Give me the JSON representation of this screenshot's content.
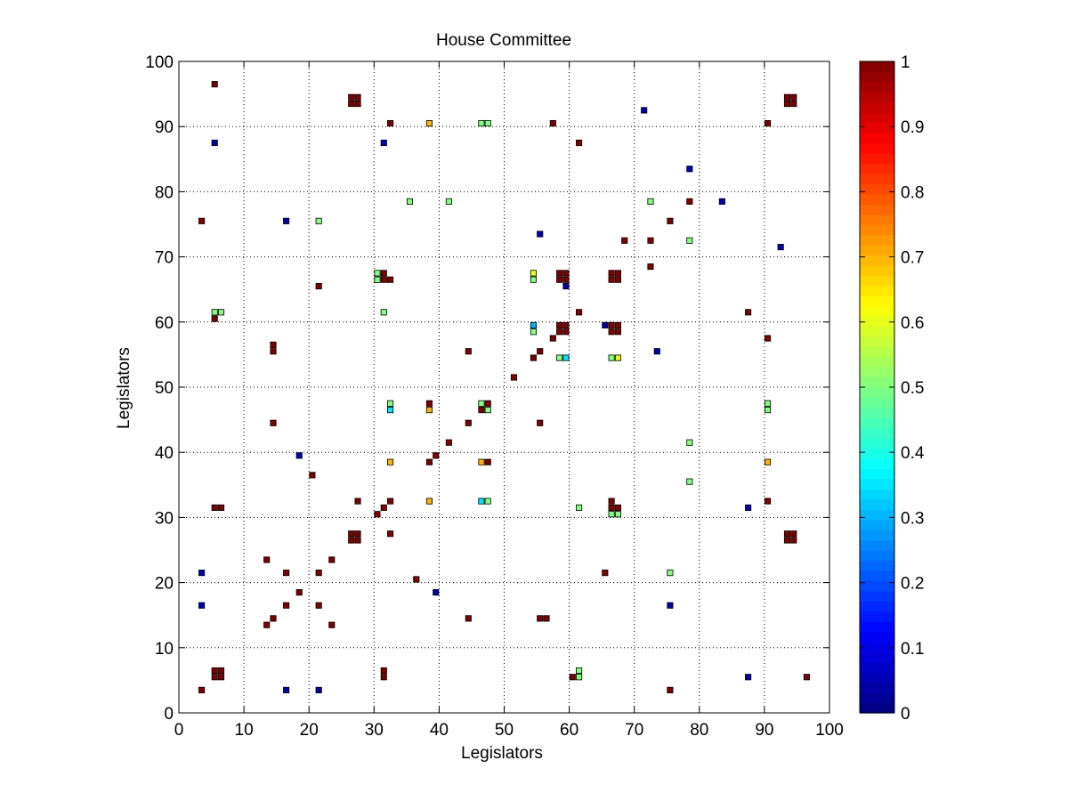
{
  "chart_data": {
    "type": "heatmap",
    "title": "House Committee",
    "xlabel": "Legislators",
    "ylabel": "Legislators",
    "xlim": [
      0,
      100
    ],
    "ylim": [
      0,
      100
    ],
    "grid": true,
    "xticks": [
      0,
      10,
      20,
      30,
      40,
      50,
      60,
      70,
      80,
      90,
      100
    ],
    "yticks": [
      0,
      10,
      20,
      30,
      40,
      50,
      60,
      70,
      80,
      90,
      100
    ],
    "colorbar": {
      "colormap": "jet",
      "range": [
        0,
        1
      ],
      "ticks": [
        0,
        0.1,
        0.2,
        0.3,
        0.4,
        0.5,
        0.6,
        0.7,
        0.8,
        0.9,
        1
      ],
      "tick_labels": [
        "0",
        "0.1",
        "0.2",
        "0.3",
        "0.4",
        "0.5",
        "0.6",
        "0.7",
        "0.8",
        "0.9",
        "1"
      ]
    },
    "cells": [
      [
        6,
        97,
        1
      ],
      [
        27,
        94,
        1
      ],
      [
        28,
        94,
        1
      ],
      [
        27,
        95,
        1
      ],
      [
        28,
        95,
        1
      ],
      [
        94,
        94,
        1
      ],
      [
        95,
        94,
        1
      ],
      [
        94,
        95,
        1
      ],
      [
        95,
        95,
        1
      ],
      [
        33,
        91,
        1
      ],
      [
        39,
        91,
        0.7
      ],
      [
        47,
        91,
        0.5
      ],
      [
        48,
        91,
        0.5
      ],
      [
        58,
        91,
        1
      ],
      [
        91,
        91,
        1
      ],
      [
        72,
        93,
        0.05
      ],
      [
        6,
        88,
        0.05
      ],
      [
        32,
        88,
        0.05
      ],
      [
        62,
        88,
        1
      ],
      [
        79,
        84,
        0.05
      ],
      [
        36,
        79,
        0.5
      ],
      [
        42,
        79,
        0.5
      ],
      [
        73,
        79,
        0.5
      ],
      [
        79,
        79,
        1
      ],
      [
        84,
        79,
        0.05
      ],
      [
        4,
        76,
        1
      ],
      [
        17,
        76,
        0.05
      ],
      [
        22,
        76,
        0.5
      ],
      [
        76,
        76,
        1
      ],
      [
        56,
        74,
        0.05
      ],
      [
        69,
        73,
        1
      ],
      [
        73,
        73,
        1
      ],
      [
        79,
        73,
        0.5
      ],
      [
        93,
        72,
        0.05
      ],
      [
        73,
        69,
        1
      ],
      [
        31,
        68,
        0.5
      ],
      [
        32,
        68,
        1
      ],
      [
        31,
        67,
        0.5
      ],
      [
        32,
        67,
        1
      ],
      [
        33,
        67,
        1
      ],
      [
        55,
        68,
        0.6
      ],
      [
        55,
        67,
        0.5
      ],
      [
        59,
        68,
        1
      ],
      [
        60,
        68,
        1
      ],
      [
        59,
        67,
        1
      ],
      [
        60,
        67,
        1
      ],
      [
        60,
        66,
        0.05
      ],
      [
        67,
        68,
        1
      ],
      [
        68,
        68,
        1
      ],
      [
        67,
        67,
        1
      ],
      [
        68,
        67,
        1
      ],
      [
        22,
        66,
        1
      ],
      [
        6,
        62,
        0.5
      ],
      [
        7,
        62,
        0.5
      ],
      [
        32,
        62,
        0.5
      ],
      [
        62,
        62,
        1
      ],
      [
        88,
        62,
        1
      ],
      [
        6,
        61,
        1
      ],
      [
        55,
        60,
        0.3
      ],
      [
        55,
        59,
        0.5
      ],
      [
        59,
        60,
        1
      ],
      [
        60,
        60,
        1
      ],
      [
        59,
        59,
        1
      ],
      [
        60,
        59,
        1
      ],
      [
        58,
        58,
        1
      ],
      [
        66,
        60,
        0.05
      ],
      [
        67,
        60,
        1
      ],
      [
        68,
        60,
        1
      ],
      [
        67,
        59,
        1
      ],
      [
        68,
        59,
        1
      ],
      [
        91,
        58,
        1
      ],
      [
        15,
        57,
        1
      ],
      [
        15,
        56,
        1
      ],
      [
        45,
        56,
        1
      ],
      [
        56,
        56,
        1
      ],
      [
        74,
        56,
        0.05
      ],
      [
        55,
        55,
        1
      ],
      [
        59,
        55,
        0.5
      ],
      [
        60,
        55,
        0.35
      ],
      [
        67,
        55,
        0.5
      ],
      [
        68,
        55,
        0.6
      ],
      [
        52,
        52,
        1
      ],
      [
        33,
        48,
        0.5
      ],
      [
        33,
        47,
        0.35
      ],
      [
        39,
        48,
        1
      ],
      [
        39,
        47,
        0.7
      ],
      [
        47,
        48,
        0.5
      ],
      [
        48,
        48,
        1
      ],
      [
        47,
        47,
        1
      ],
      [
        48,
        47,
        0.5
      ],
      [
        91,
        48,
        0.5
      ],
      [
        91,
        47,
        0.5
      ],
      [
        15,
        45,
        1
      ],
      [
        45,
        45,
        1
      ],
      [
        56,
        45,
        1
      ],
      [
        42,
        42,
        1
      ],
      [
        79,
        42,
        0.5
      ],
      [
        19,
        40,
        0.05
      ],
      [
        40,
        40,
        1
      ],
      [
        33,
        39,
        0.7
      ],
      [
        39,
        39,
        1
      ],
      [
        47,
        39,
        0.7
      ],
      [
        48,
        39,
        1
      ],
      [
        91,
        39,
        0.7
      ],
      [
        21,
        37,
        1
      ],
      [
        79,
        36,
        0.5
      ],
      [
        28,
        33,
        1
      ],
      [
        33,
        33,
        1
      ],
      [
        39,
        33,
        0.7
      ],
      [
        47,
        33,
        0.35
      ],
      [
        48,
        33,
        0.5
      ],
      [
        67,
        33,
        1
      ],
      [
        91,
        33,
        1
      ],
      [
        6,
        32,
        1
      ],
      [
        7,
        32,
        1
      ],
      [
        32,
        32,
        1
      ],
      [
        62,
        32,
        0.5
      ],
      [
        67,
        32,
        1
      ],
      [
        68,
        32,
        1
      ],
      [
        88,
        32,
        0.05
      ],
      [
        31,
        31,
        1
      ],
      [
        67,
        31,
        0.5
      ],
      [
        68,
        31,
        0.5
      ],
      [
        27,
        28,
        1
      ],
      [
        28,
        28,
        1
      ],
      [
        27,
        27,
        1
      ],
      [
        28,
        27,
        1
      ],
      [
        33,
        28,
        1
      ],
      [
        94,
        28,
        1
      ],
      [
        95,
        28,
        1
      ],
      [
        94,
        27,
        1
      ],
      [
        95,
        27,
        1
      ],
      [
        14,
        24,
        1
      ],
      [
        24,
        24,
        1
      ],
      [
        4,
        22,
        0.05
      ],
      [
        17,
        22,
        1
      ],
      [
        22,
        22,
        1
      ],
      [
        66,
        22,
        1
      ],
      [
        76,
        22,
        0.5
      ],
      [
        37,
        21,
        1
      ],
      [
        19,
        19,
        1
      ],
      [
        40,
        19,
        0.05
      ],
      [
        4,
        17,
        0.05
      ],
      [
        17,
        17,
        1
      ],
      [
        22,
        17,
        1
      ],
      [
        76,
        17,
        0.05
      ],
      [
        15,
        15,
        1
      ],
      [
        45,
        15,
        1
      ],
      [
        56,
        15,
        1
      ],
      [
        57,
        15,
        1
      ],
      [
        14,
        14,
        1
      ],
      [
        24,
        14,
        1
      ],
      [
        32,
        7,
        1
      ],
      [
        62,
        7,
        0.5
      ],
      [
        6,
        6,
        1
      ],
      [
        7,
        6,
        1
      ],
      [
        32,
        6,
        1
      ],
      [
        61,
        6,
        1
      ],
      [
        62,
        6,
        0.5
      ],
      [
        88,
        6,
        0.05
      ],
      [
        97,
        6,
        1
      ],
      [
        6,
        7,
        1
      ],
      [
        7,
        7,
        1
      ],
      [
        4,
        4,
        1
      ],
      [
        17,
        4,
        0.05
      ],
      [
        22,
        4,
        0.05
      ],
      [
        76,
        4,
        1
      ]
    ]
  }
}
